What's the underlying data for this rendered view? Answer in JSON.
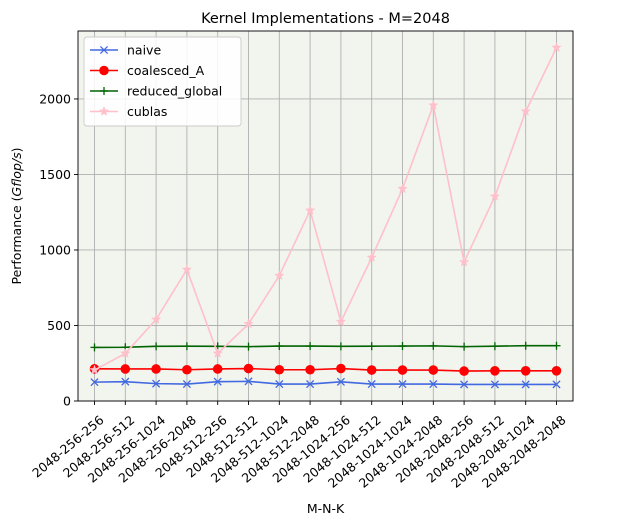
{
  "chart_data": {
    "type": "line",
    "title": "Kernel Implementations - M=2048",
    "xlabel": "M-N-K",
    "ylabel": "Performance (Gflop/s)",
    "ylabel_plain": "Performance (",
    "ylabel_italic": "Gflop/s",
    "ylabel_end": ")",
    "categories": [
      "2048-256-256",
      "2048-256-512",
      "2048-256-1024",
      "2048-256-2048",
      "2048-512-256",
      "2048-512-512",
      "2048-512-1024",
      "2048-512-2048",
      "2048-1024-256",
      "2048-1024-512",
      "2048-1024-1024",
      "2048-1024-2048",
      "2048-2048-256",
      "2048-2048-512",
      "2048-2048-1024",
      "2048-2048-2048"
    ],
    "yticks": [
      0,
      500,
      1000,
      1500,
      2000
    ],
    "ylim": [
      0,
      2450
    ],
    "grid": true,
    "background": "#f2f4ee",
    "legend_position": "top-left",
    "series": [
      {
        "name": "naive",
        "color": "#4169e1",
        "marker": "x",
        "values": [
          125,
          128,
          115,
          112,
          128,
          130,
          112,
          112,
          127,
          112,
          112,
          112,
          110,
          110,
          110,
          110
        ]
      },
      {
        "name": "coalesced_A",
        "color": "#ff0000",
        "marker": "circle",
        "values": [
          213,
          212,
          212,
          207,
          212,
          215,
          207,
          207,
          215,
          205,
          205,
          205,
          198,
          200,
          200,
          200
        ]
      },
      {
        "name": "reduced_global",
        "color": "#006400",
        "marker": "plus",
        "values": [
          355,
          356,
          362,
          363,
          362,
          360,
          364,
          364,
          362,
          363,
          364,
          365,
          360,
          363,
          366,
          366
        ]
      },
      {
        "name": "cublas",
        "color": "#ffc0cb",
        "marker": "star",
        "values": [
          205,
          315,
          540,
          870,
          315,
          510,
          830,
          1262,
          525,
          950,
          1405,
          1958,
          920,
          1355,
          1918,
          2340
        ]
      }
    ]
  }
}
